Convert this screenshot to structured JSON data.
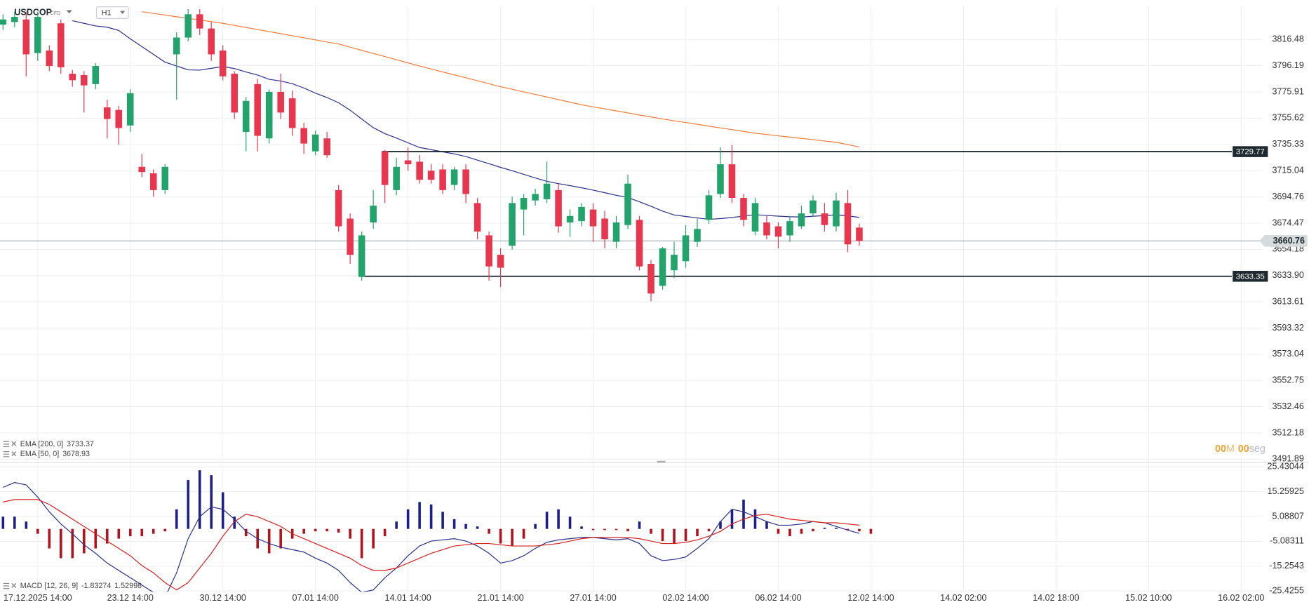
{
  "chart_data": [
    {
      "type": "candlestick",
      "symbol": "USDCOP",
      "instrument_type": "CFD",
      "timeframe": "H1",
      "categories": [
        null,
        null,
        null,
        "17.12.2025 14:00",
        null,
        null,
        null,
        null,
        null,
        null,
        null,
        "23.12 14:00",
        null,
        null,
        null,
        null,
        null,
        null,
        null,
        "30.12 14:00",
        null,
        null,
        null,
        null,
        null,
        null,
        null,
        "07.01 14:00",
        null,
        null,
        null,
        null,
        null,
        null,
        null,
        "14.01 14:00",
        null,
        null,
        null,
        null,
        null,
        null,
        null,
        "21.01 14:00",
        null,
        null,
        null,
        null,
        null,
        null,
        null,
        "27.01 14:00",
        null,
        null,
        null,
        null,
        null,
        null,
        null,
        "02.02 14:00",
        null,
        null,
        null,
        null,
        null,
        null,
        null,
        "06.02 14:00",
        null,
        null,
        null,
        null,
        null,
        null,
        null,
        "12.02 14:00",
        null,
        null,
        null,
        null,
        null,
        null,
        null,
        "14.02 02:00",
        null,
        null,
        null,
        null,
        null,
        null,
        null,
        "14.02 18:00",
        null,
        null,
        null,
        null,
        null,
        null,
        null,
        "15.02 10:00",
        null,
        null,
        null,
        null,
        null,
        null,
        null,
        "16.02 02:00"
      ],
      "open": [
        3828,
        3830,
        3832,
        3806,
        3808,
        3829,
        3790,
        3789,
        3782,
        3764,
        3762,
        3750,
        3718,
        3713,
        3700,
        3805,
        3818,
        3836,
        3825,
        3808,
        3790,
        3745,
        3782,
        3740,
        3776,
        3771,
        3748,
        3730,
        3740,
        3700,
        3678,
        3633,
        3675,
        3730,
        3700,
        3723,
        3722,
        3715,
        3716,
        3704,
        3716,
        3690,
        3665,
        3650,
        3657,
        3685,
        3692,
        3693,
        3700,
        3675,
        3676,
        3685,
        3678,
        3660,
        3673,
        3677,
        3643,
        3626,
        3638,
        3645,
        3660,
        3677,
        3697,
        3720,
        3694,
        3668,
        3675,
        3672,
        3665,
        3672,
        3682,
        3682,
        3672,
        3690,
        3671,
        null,
        null,
        null,
        null,
        null,
        null,
        null,
        null,
        null,
        null,
        null,
        null,
        null,
        null,
        null,
        null,
        null,
        null,
        null,
        null,
        null,
        null,
        null,
        null,
        null,
        null,
        null,
        null,
        null,
        null,
        null,
        null,
        null
      ],
      "high": [
        3836,
        3838,
        3838,
        3838,
        3812,
        3832,
        3793,
        3792,
        3798,
        3770,
        3765,
        3778,
        3728,
        3716,
        3720,
        3822,
        3840,
        3840,
        3830,
        3812,
        3792,
        3772,
        3786,
        3778,
        3790,
        3777,
        3752,
        3746,
        3745,
        3704,
        3682,
        3668,
        3700,
        3731,
        3725,
        3733,
        3727,
        3720,
        3720,
        3718,
        3720,
        3694,
        3668,
        3655,
        3695,
        3697,
        3701,
        3722,
        3705,
        3685,
        3690,
        3690,
        3684,
        3680,
        3712,
        3680,
        3646,
        3656,
        3660,
        3673,
        3678,
        3700,
        3733,
        3735,
        3697,
        3694,
        3680,
        3675,
        3680,
        3688,
        3696,
        3690,
        3698,
        3700,
        3674,
        null,
        null,
        null,
        null,
        null,
        null,
        null,
        null,
        null,
        null,
        null,
        null,
        null,
        null,
        null,
        null,
        null,
        null,
        null,
        null,
        null,
        null,
        null,
        null,
        null,
        null,
        null,
        null,
        null,
        null,
        null,
        null,
        null
      ],
      "low": [
        3824,
        3826,
        3788,
        3800,
        3792,
        3790,
        3780,
        3760,
        3778,
        3740,
        3735,
        3745,
        3710,
        3695,
        3697,
        3770,
        3815,
        3820,
        3800,
        3785,
        3755,
        3730,
        3730,
        3736,
        3755,
        3742,
        3728,
        3727,
        3725,
        3668,
        3643,
        3630,
        3670,
        3690,
        3696,
        3715,
        3705,
        3705,
        3697,
        3700,
        3690,
        3662,
        3630,
        3625,
        3654,
        3665,
        3688,
        3690,
        3667,
        3664,
        3672,
        3660,
        3655,
        3655,
        3670,
        3638,
        3614,
        3623,
        3632,
        3640,
        3656,
        3674,
        3694,
        3690,
        3672,
        3665,
        3662,
        3655,
        3660,
        3670,
        3680,
        3668,
        3668,
        3652,
        3657,
        null,
        null,
        null,
        null,
        null,
        null,
        null,
        null,
        null,
        null,
        null,
        null,
        null,
        null,
        null,
        null,
        null,
        null,
        null,
        null,
        null,
        null,
        null,
        null,
        null,
        null,
        null,
        null,
        null,
        null,
        null,
        null,
        null
      ],
      "close": [
        3832,
        3834,
        3805,
        3834,
        3796,
        3795,
        3785,
        3781,
        3796,
        3755,
        3748,
        3775,
        3714,
        3700,
        3718,
        3818,
        3836,
        3825,
        3805,
        3788,
        3760,
        3769,
        3742,
        3776,
        3760,
        3748,
        3736,
        3743,
        3727,
        3672,
        3650,
        3665,
        3688,
        3704,
        3718,
        3720,
        3708,
        3708,
        3700,
        3716,
        3697,
        3668,
        3641,
        3640,
        3690,
        3694,
        3697,
        3705,
        3672,
        3680,
        3687,
        3672,
        3662,
        3675,
        3705,
        3641,
        3620,
        3655,
        3650,
        3665,
        3670,
        3696,
        3720,
        3694,
        3677,
        3690,
        3665,
        3664,
        3676,
        3682,
        3692,
        3673,
        3692,
        3658,
        3660.76,
        null,
        null,
        null,
        null,
        null,
        null,
        null,
        null,
        null,
        null,
        null,
        null,
        null,
        null,
        null,
        null,
        null,
        null,
        null,
        null,
        null,
        null,
        null,
        null,
        null,
        null,
        null,
        null,
        null,
        null,
        null,
        null,
        null
      ],
      "up_color": "#22a36b",
      "down_color": "#e8364e",
      "series": [
        {
          "name": "EMA [200, 0]",
          "color": "#f07a3a",
          "values": [
            null,
            null,
            null,
            null,
            null,
            null,
            null,
            null,
            null,
            null,
            null,
            null,
            3838,
            3836.7,
            3835.4,
            3834.1,
            3832.9,
            3831.6,
            3830.3,
            3829,
            3827.4,
            3825.8,
            3824.2,
            3822.6,
            3821,
            3819.4,
            3817.8,
            3816.2,
            3814.6,
            3813,
            3810.6,
            3808.1,
            3805.7,
            3803.3,
            3800.9,
            3798.4,
            3796,
            3793.7,
            3791.4,
            3789.1,
            3786.9,
            3784.6,
            3782.3,
            3780,
            3778,
            3776,
            3774,
            3772,
            3770,
            3768,
            3766,
            3764.4,
            3762.9,
            3761.3,
            3759.7,
            3758.1,
            3756.6,
            3755,
            3753.6,
            3752.3,
            3750.9,
            3749.5,
            3748.1,
            3746.8,
            3745.4,
            3744,
            3743,
            3742,
            3741,
            3740,
            3739,
            3738,
            3737,
            3735.2,
            3733.37,
            null,
            null,
            null,
            null,
            null,
            null,
            null,
            null,
            null,
            null,
            null,
            null,
            null,
            null,
            null,
            null,
            null,
            null,
            null,
            null,
            null,
            null,
            null,
            null,
            null,
            null,
            null,
            null,
            null,
            null,
            null,
            null,
            null
          ]
        },
        {
          "name": "EMA [50, 0]",
          "color": "#2a2f8a",
          "values": [
            null,
            null,
            null,
            null,
            null,
            null,
            3831,
            3829,
            3827,
            3826,
            3823.5,
            3817,
            3811,
            3805,
            3799,
            3796,
            3793,
            3792.8,
            3794.2,
            3795.6,
            3794,
            3791.4,
            3789,
            3785.7,
            3784.4,
            3782.3,
            3779,
            3775,
            3771.6,
            3767.6,
            3761.8,
            3755,
            3748.3,
            3743.7,
            3740.3,
            3736.6,
            3733,
            3731.3,
            3729.6,
            3728,
            3726,
            3723.2,
            3720.4,
            3717.6,
            3715,
            3712.2,
            3709.4,
            3706.8,
            3705,
            3703.5,
            3701.8,
            3700,
            3698,
            3696,
            3694.3,
            3691,
            3687.5,
            3683.8,
            3680.8,
            3679.6,
            3678.5,
            3677.4,
            3678,
            3678.8,
            3679.9,
            3681,
            3680.4,
            3679.9,
            3679.4,
            3679.2,
            3679.8,
            3680.3,
            3680.9,
            3680.1,
            3678.93,
            null,
            null,
            null,
            null,
            null,
            null,
            null,
            null,
            null,
            null,
            null,
            null,
            null,
            null,
            null,
            null,
            null,
            null,
            null,
            null,
            null,
            null,
            null,
            null,
            null,
            null,
            null,
            null,
            null,
            null,
            null,
            null,
            null
          ]
        }
      ],
      "ylim": [
        3489.94,
        3841.8
      ],
      "yticks": [
        3816.48,
        3796.19,
        3775.91,
        3755.62,
        3735.33,
        3715.04,
        3694.76,
        3674.47,
        3654.18,
        {
          "value": 3633.9,
          "label": "3633.90"
        },
        3613.61,
        3593.32,
        3573.04,
        3552.75,
        3532.46,
        3512.18,
        3491.89
      ],
      "grid": true,
      "levels": [
        3729.77,
        3633.35
      ],
      "level_color": "#1f2a30",
      "last": 3660.76,
      "last_color": "#9aa3a8",
      "countdown": {
        "minutes": "00",
        "minutes_unit": "M",
        "seconds": "00",
        "seconds_unit": "seg"
      }
    },
    {
      "type": "macd",
      "histogram": {
        "up_color": "#1c1f8a",
        "down_color": "#b3121c",
        "values": [
          5,
          5,
          3,
          -2,
          -8,
          -12,
          -12,
          -10,
          -8,
          -6,
          -4,
          -3,
          -3,
          -2,
          -1,
          8,
          20,
          24,
          22,
          15,
          5,
          -3,
          -8,
          -10,
          -8,
          -4,
          -2,
          -1,
          -1,
          -1.5,
          -4,
          -12,
          -8,
          -3,
          3,
          8,
          11,
          10,
          7,
          4,
          2,
          1,
          -2,
          -6,
          -7,
          -4,
          2,
          7,
          8,
          5,
          1,
          -0.5,
          -0.5,
          -0.5,
          -1,
          3,
          -2,
          -5,
          -6,
          -5,
          -3,
          -1,
          3,
          8,
          12,
          8,
          3,
          -2,
          -3,
          -2,
          -1,
          0.5,
          0.5,
          -0.5,
          -1,
          -2,
          null,
          null,
          null,
          null,
          null,
          null,
          null,
          null,
          null,
          null,
          null,
          null,
          null,
          null,
          null,
          null,
          null,
          null,
          null,
          null,
          null,
          null,
          null,
          null,
          null,
          null,
          null,
          null,
          null,
          null,
          null,
          null,
          null
        ]
      },
      "series": [
        {
          "name": "MACD [12, 26, 9]",
          "color": "#2a2f8a",
          "values": [
            17,
            19,
            18,
            13,
            7,
            2,
            -2,
            -6.5,
            -10,
            -14,
            -17,
            -20,
            -23,
            -26,
            -28,
            -18,
            -4,
            5,
            9,
            8,
            4,
            -1,
            -4,
            -6,
            -7.5,
            -8.5,
            -9.5,
            -12,
            -14,
            -17,
            -22,
            -26,
            -25,
            -20,
            -16,
            -11,
            -7,
            -5,
            -4.5,
            -4,
            -5,
            -7,
            -10,
            -14,
            -13,
            -11,
            -8,
            -5.5,
            -4.5,
            -4,
            -3.5,
            -3.5,
            -4,
            -4.5,
            -4,
            -6,
            -11,
            -13,
            -12.5,
            -11.5,
            -8,
            -4,
            3,
            8,
            7,
            5,
            3,
            1.5,
            1.5,
            2,
            3,
            2.5,
            1,
            -0.5,
            -1.83274,
            null,
            null,
            null,
            null,
            null,
            null,
            null,
            null,
            null,
            null,
            null,
            null,
            null,
            null,
            null,
            null,
            null,
            null,
            null,
            null,
            null,
            null,
            null,
            null,
            null,
            null,
            null,
            null,
            null,
            null,
            null,
            null,
            null
          ]
        },
        {
          "color": "#d42020",
          "values": [
            11,
            12,
            12,
            12,
            10,
            7,
            4,
            1,
            -2,
            -5,
            -8,
            -11,
            -15,
            -18,
            -22,
            -25,
            -22,
            -16,
            -10,
            -3,
            3,
            6,
            5,
            3,
            1,
            -2,
            -4,
            -6,
            -8,
            -10,
            -12,
            -15,
            -17,
            -17,
            -16,
            -14,
            -12,
            -10,
            -8.5,
            -7,
            -6.5,
            -6,
            -6,
            -6.5,
            -7,
            -7,
            -7,
            -6.5,
            -6,
            -5,
            -4,
            -3.5,
            -3.5,
            -3.5,
            -3.5,
            -4,
            -5,
            -6,
            -6,
            -5.5,
            -4.5,
            -3,
            -1,
            2,
            4,
            5.5,
            6,
            5,
            4,
            3.5,
            3,
            2.5,
            2.5,
            2,
            1.52998,
            null,
            null,
            null,
            null,
            null,
            null,
            null,
            null,
            null,
            null,
            null,
            null,
            null,
            null,
            null,
            null,
            null,
            null,
            null,
            null,
            null,
            null,
            null,
            null,
            null,
            null,
            null,
            null,
            null,
            null,
            null,
            null,
            null
          ]
        }
      ],
      "ylim": [
        -25.4255,
        25.43044
      ],
      "yticks": [
        25.43044,
        15.25925,
        5.08807,
        -5.08311,
        -15.2543,
        -25.4255
      ],
      "grid": true
    }
  ]
}
